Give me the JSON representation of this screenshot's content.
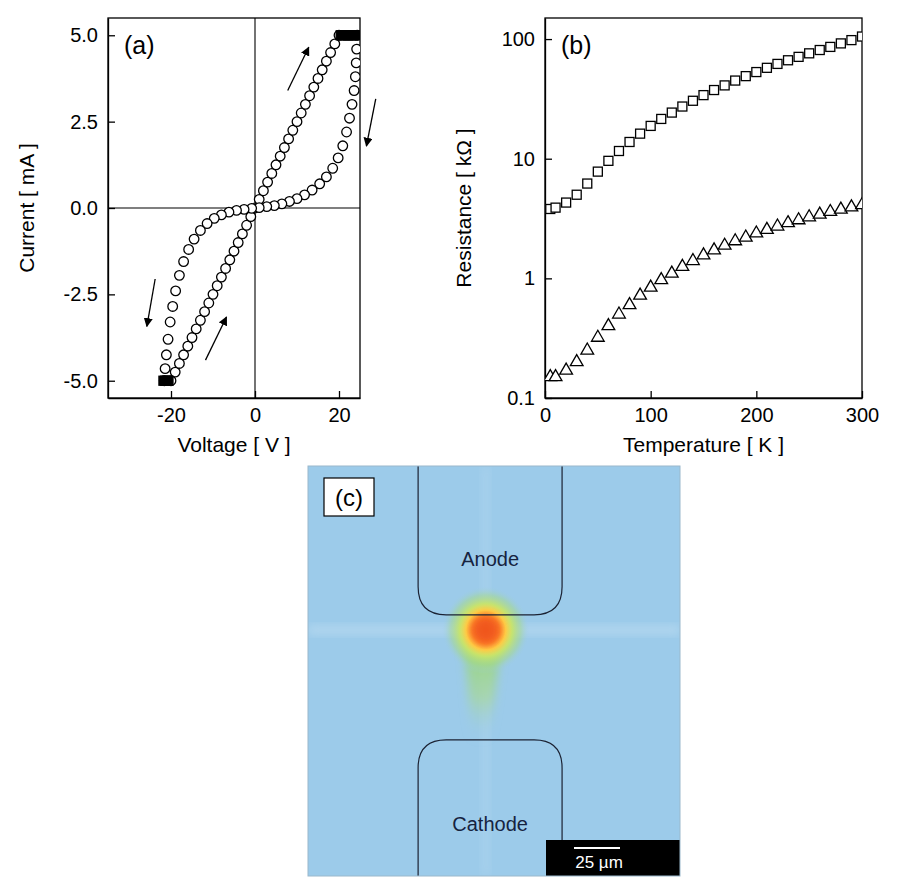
{
  "chart_data": [
    {
      "type": "hysteresis",
      "label": "(a)",
      "xlabel": "Voltage [ V ]",
      "ylabel": "Current [ mA ]",
      "xlim": [
        -35,
        25
      ],
      "xticks": [
        -20,
        0,
        20
      ],
      "ylim": [
        -5.5,
        5.5
      ],
      "yticks": [
        {
          "value": -5,
          "label": "-5.0"
        },
        {
          "value": -2.5,
          "label": "-2.5"
        },
        {
          "value": 0,
          "label": "0.0"
        },
        {
          "value": 2.5,
          "label": "2.5"
        },
        {
          "value": 5,
          "label": "5.0"
        }
      ],
      "series": [
        {
          "color": "#000000",
          "marker": "circle-open",
          "x": [
            -20,
            -19,
            -18,
            -17,
            -16,
            -15,
            -14,
            -13,
            -12,
            -11,
            -10,
            -9,
            -8,
            -7,
            -6,
            -5,
            -4,
            -3,
            -2,
            -1,
            0,
            1,
            2,
            3,
            4,
            5,
            6,
            7,
            8,
            9,
            10,
            11,
            12,
            13,
            14,
            15,
            16,
            17,
            18,
            19,
            20
          ],
          "values": [
            -5,
            -4.75,
            -4.5,
            -4.25,
            -4,
            -3.75,
            -3.5,
            -3.25,
            -3,
            -2.75,
            -2.5,
            -2.25,
            -2,
            -1.75,
            -1.5,
            -1.25,
            -1,
            -0.75,
            -0.5,
            -0.25,
            0,
            0.25,
            0.5,
            0.75,
            1,
            1.25,
            1.5,
            1.75,
            2,
            2.25,
            2.5,
            2.75,
            3,
            3.25,
            3.5,
            3.75,
            4,
            4.25,
            4.5,
            4.75,
            5
          ]
        },
        {
          "color": "#000000",
          "marker": "circle-open",
          "x": [
            24.3,
            24.2,
            24.1,
            23.9,
            23.6,
            23.1,
            22.5,
            21.8,
            20.9,
            19.8,
            18.5,
            17.0,
            15.4,
            13.6,
            11.8,
            10.0,
            8.2,
            6.4,
            4.6,
            2.8,
            1.0,
            -0.8,
            -2.6,
            -4.4,
            -6.2,
            -8.0,
            -9.7,
            -11.4,
            -13.0,
            -14.5,
            -15.8,
            -17.0,
            -18.0,
            -18.9,
            -19.6,
            -20.2,
            -20.7,
            -21.1,
            -21.4,
            -21.6
          ],
          "values": [
            5.0,
            4.6,
            4.2,
            3.8,
            3.4,
            3.0,
            2.6,
            2.2,
            1.8,
            1.45,
            1.15,
            0.9,
            0.7,
            0.52,
            0.38,
            0.27,
            0.19,
            0.12,
            0.07,
            0.04,
            0.01,
            -0.01,
            -0.04,
            -0.07,
            -0.12,
            -0.2,
            -0.3,
            -0.45,
            -0.65,
            -0.9,
            -1.2,
            -1.55,
            -1.95,
            -2.4,
            -2.85,
            -3.3,
            -3.8,
            -4.25,
            -4.65,
            -5.0
          ]
        },
        {
          "color": "#000000",
          "marker": "square-filled",
          "x": [
            20.4,
            21.0,
            21.6,
            22.2,
            22.8,
            23.4,
            24.0,
            -21.8,
            -21.4,
            -21.0,
            -20.6
          ],
          "values": [
            5,
            5,
            5,
            5,
            5,
            5,
            5,
            -5,
            -5,
            -5,
            -5
          ]
        }
      ]
    },
    {
      "type": "scatter",
      "label": "(b)",
      "log": "y",
      "xlabel": "Temperature [ K ]",
      "ylabel": "Resistance [ kΩ ]",
      "xlim": [
        0,
        300
      ],
      "xticks": [
        0,
        100,
        200,
        300
      ],
      "ylim": [
        0.1,
        150
      ],
      "yticks": [
        0.1,
        1,
        10,
        100
      ],
      "series": [
        {
          "color": "#000000",
          "marker": "square-open",
          "x": [
            5,
            10,
            20,
            30,
            40,
            50,
            60,
            70,
            80,
            90,
            100,
            110,
            120,
            130,
            140,
            150,
            160,
            170,
            180,
            190,
            200,
            210,
            220,
            230,
            240,
            250,
            260,
            270,
            280,
            290,
            300
          ],
          "values": [
            3.8,
            3.9,
            4.3,
            5.0,
            6.2,
            7.8,
            9.6,
            11.6,
            13.8,
            16.2,
            18.8,
            21.5,
            24.3,
            27.3,
            30.5,
            34,
            37.5,
            41,
            45,
            49,
            53,
            57.5,
            62,
            66.5,
            71,
            76,
            81,
            86,
            92,
            98,
            105
          ]
        },
        {
          "color": "#000000",
          "marker": "triangle-open",
          "x": [
            5,
            10,
            20,
            30,
            40,
            50,
            60,
            70,
            80,
            90,
            100,
            110,
            120,
            130,
            140,
            150,
            160,
            170,
            180,
            190,
            200,
            210,
            220,
            230,
            240,
            250,
            260,
            270,
            280,
            290,
            300
          ],
          "values": [
            0.15,
            0.15,
            0.17,
            0.2,
            0.25,
            0.32,
            0.4,
            0.5,
            0.6,
            0.72,
            0.84,
            0.97,
            1.1,
            1.25,
            1.4,
            1.56,
            1.72,
            1.88,
            2.05,
            2.2,
            2.38,
            2.55,
            2.72,
            2.9,
            3.07,
            3.25,
            3.42,
            3.6,
            3.77,
            3.93,
            4.1
          ]
        }
      ]
    },
    {
      "type": "image",
      "label": "(c)",
      "annotations": [
        "Anode",
        "Cathode"
      ],
      "scale_bar": "25 µm"
    }
  ]
}
